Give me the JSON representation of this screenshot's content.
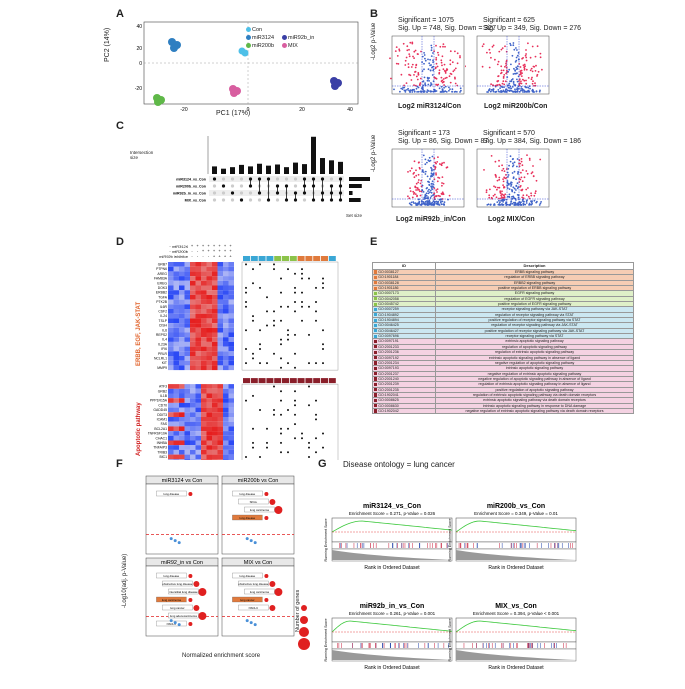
{
  "panel_labels": {
    "A": "A",
    "B": "B",
    "C": "C",
    "D": "D",
    "E": "E",
    "F": "F",
    "G": "G"
  },
  "pca": {
    "xlabel": "PC1 (17%)",
    "ylabel": "PC2 (14%)",
    "xticks": [
      "-20",
      "0",
      "20",
      "40"
    ],
    "yticks": [
      "40",
      "20",
      "0",
      "-20"
    ],
    "legend": [
      {
        "name": "Con",
        "color": "#4ec0e8"
      },
      {
        "name": "miR3124",
        "color": "#2f7fc1"
      },
      {
        "name": "miR92b_in",
        "color": "#3a3fa6"
      },
      {
        "name": "miR200b",
        "color": "#5fb848"
      },
      {
        "name": "MIX",
        "color": "#d85ea0"
      }
    ]
  },
  "volcano": [
    {
      "title": "Log2 miR3124/Con",
      "sig": "Significant = 1075",
      "updown": "Sig. Up = 748, Sig. Down = 327"
    },
    {
      "title": "Log2 miR200b/Con",
      "sig": "Significant = 625",
      "updown": "Sig. Up = 349, Sig. Down = 276"
    },
    {
      "title": "Log2 miR92b_in/Con",
      "sig": "Significant = 173",
      "updown": "Sig. Up = 86, Sig. Down = 87"
    },
    {
      "title": "Log2 MIX/Con",
      "sig": "Significant = 570",
      "updown": "Sig. Up = 384, Sig. Down = 186"
    }
  ],
  "volcano_ylabel": "-Log2 p-Value",
  "upset": {
    "ylabel": "Intersection size",
    "set_label": "Set size",
    "bars": [
      20,
      14,
      18,
      24,
      20,
      27,
      22,
      25,
      18,
      30,
      26,
      98,
      42,
      36,
      32
    ],
    "sets": [
      {
        "name": "miR3124_vs_Con",
        "size": "1075"
      },
      {
        "name": "miR200b_vs_Con",
        "size": "625"
      },
      {
        "name": "miR92b_in_vs_Con",
        "size": "173"
      },
      {
        "name": "MIX_vs_Con",
        "size": "570"
      }
    ]
  },
  "heatmap": {
    "row_labels": [
      "miR3124",
      "miR200b",
      "miR92b inhibitor"
    ],
    "side_label_1": "ERBB, EGF, JAK-STAT",
    "side_label_2": "Apoptotic pathway",
    "genes_top": [
      "GRB7",
      "PTPN6",
      "AREG",
      "FAM83A",
      "EREG",
      "DOK3",
      "ERBB2",
      "TGFA",
      "PTK2B",
      "IL6R",
      "CSF2",
      "IL24",
      "TSLP",
      "CISH",
      "IL6",
      "REPS2",
      "IL4",
      "IL23A",
      "IFI6",
      "PRLR",
      "NCLRL1",
      "KIT",
      "MMP9"
    ],
    "genes_bottom": [
      "ATF3",
      "GRB2",
      "IL1B",
      "PPP1R15A",
      "CD70",
      "GADD45",
      "DDIT3",
      "ICAM1",
      "FAS",
      "BCL2A1",
      "TNFRSF10A",
      "CHAC1",
      "INHBA",
      "TNFAIP3",
      "TRIB3",
      "BIC1",
      "HMOX1",
      "NGFR",
      "MMP9",
      "IL6R",
      "GRB83"
    ]
  },
  "go_table": {
    "col_id": "ID",
    "col_desc": "Description",
    "rows": [
      {
        "g": "ERBB",
        "c": "#e07a3c",
        "id": "GO:0038127",
        "d": "ERBB signaling pathway"
      },
      {
        "g": "ERBB",
        "c": "#e07a3c",
        "id": "GO:1901184",
        "d": "regulation of ERBB signaling pathway"
      },
      {
        "g": "ERBB",
        "c": "#e07a3c",
        "id": "GO:0038128",
        "d": "ERBB2 signaling pathway"
      },
      {
        "g": "ERBB",
        "c": "#e07a3c",
        "id": "GO:1901186",
        "d": "positive regulation of ERBB signaling pathway"
      },
      {
        "g": "EGFR",
        "c": "#8cc34a",
        "id": "GO:0007173",
        "d": "EGFR signaling pathway"
      },
      {
        "g": "EGFR",
        "c": "#8cc34a",
        "id": "GO:0042058",
        "d": "regulation of EGFR signaling pathway"
      },
      {
        "g": "EGFR",
        "c": "#8cc34a",
        "id": "GO:0045742",
        "d": "positive regulation of EGFR signaling pathway"
      },
      {
        "g": "JAK",
        "c": "#3aa7d5",
        "id": "GO:0007259",
        "d": "receptor signaling pathway via JAK-STAT"
      },
      {
        "g": "JAK",
        "c": "#3aa7d5",
        "id": "GO:1904892",
        "d": "regulation of receptor signaling pathway via STAT"
      },
      {
        "g": "JAK",
        "c": "#3aa7d5",
        "id": "GO:1904894",
        "d": "positive regulation of receptor signaling pathway via STAT"
      },
      {
        "g": "JAK",
        "c": "#3aa7d5",
        "id": "GO:0046425",
        "d": "regulation of receptor signaling pathway via JAK-STAT"
      },
      {
        "g": "JAK",
        "c": "#3aa7d5",
        "id": "GO:0046427",
        "d": "positive regulation of receptor signaling pathway via JAK-STAT"
      },
      {
        "g": "JAK",
        "c": "#3aa7d5",
        "id": "GO:0097696",
        "d": "receptor signaling pathway via STAT"
      },
      {
        "g": "APO",
        "c": "#8a1f2a",
        "id": "GO:0097191",
        "d": "extrinsic apoptotic signaling pathway"
      },
      {
        "g": "APO",
        "c": "#8a1f2a",
        "id": "GO:2001233",
        "d": "regulation of apoptotic signaling pathway"
      },
      {
        "g": "APO",
        "c": "#8a1f2a",
        "id": "GO:2001236",
        "d": "regulation of extrinsic apoptotic signaling pathway"
      },
      {
        "g": "APO",
        "c": "#8a1f2a",
        "id": "GO:0097192",
        "d": "extrinsic apoptotic signaling pathway in absence of ligand"
      },
      {
        "g": "APO",
        "c": "#8a1f2a",
        "id": "GO:2001234",
        "d": "negative regulation of apoptotic signaling pathway"
      },
      {
        "g": "APO",
        "c": "#8a1f2a",
        "id": "GO:0097193",
        "d": "intrinsic apoptotic signaling pathway"
      },
      {
        "g": "APO",
        "c": "#8a1f2a",
        "id": "GO:2001237",
        "d": "negative regulation of extrinsic apoptotic signaling pathway"
      },
      {
        "g": "APO",
        "c": "#8a1f2a",
        "id": "GO:2001240",
        "d": "negative regulation of apoptotic signaling pathway in absence of ligand"
      },
      {
        "g": "APO",
        "c": "#8a1f2a",
        "id": "GO:2001239",
        "d": "regulation of extrinsic apoptotic signaling pathway in absence of ligand"
      },
      {
        "g": "APO",
        "c": "#8a1f2a",
        "id": "GO:2001235",
        "d": "positive regulation of apoptotic signaling pathway"
      },
      {
        "g": "APO",
        "c": "#8a1f2a",
        "id": "GO:1902041",
        "d": "regulation of extrinsic apoptotic signaling pathway via death domain receptors"
      },
      {
        "g": "APO",
        "c": "#8a1f2a",
        "id": "GO:0008625",
        "d": "extrinsic apoptotic signaling pathway via death domain receptors"
      },
      {
        "g": "APO",
        "c": "#8a1f2a",
        "id": "GO:0008630",
        "d": "intrinsic apoptotic signaling pathway in response to DNA damage"
      },
      {
        "g": "APO",
        "c": "#8a1f2a",
        "id": "GO:1902042",
        "d": "negative regulation of extrinsic apoptotic signaling pathway via death domain receptors"
      }
    ]
  },
  "enrich": {
    "ylabel": "-Log10(adj. p-Value)",
    "xlabel": "Normalized enrichment score",
    "size_label": "Number of genes",
    "panels": [
      {
        "title": "miR3124 vs Con",
        "labels": [
          "lung disease"
        ]
      },
      {
        "title": "miR200b vs Con",
        "labels": [
          "lung disease",
          "SKGL",
          "lung carcinoma",
          "lung disease"
        ]
      },
      {
        "title": "miR92_in vs Con",
        "labels": [
          "lung disease",
          "obstructive lung disease",
          "interstitial lung disease",
          "lung carcinoma",
          "lung cancer",
          "lung adenocarcinoma",
          "NSCLC"
        ]
      },
      {
        "title": "MIX vs Con",
        "labels": [
          "lung disease",
          "obstructive lung disease",
          "lung carcinoma",
          "lung cancer",
          "NSCLC"
        ]
      }
    ],
    "size_legend": [
      "10",
      "20",
      "30",
      "40"
    ]
  },
  "gsea": {
    "header": "Disease ontology = lung cancer",
    "ylabel": "Running Enrichment Score",
    "xlabel": "Rank in Ordered Dataset",
    "panels": [
      {
        "title": "miR3124_vs_Con",
        "stat": "Enrichment Score = 0.271, p-Value = 0.026"
      },
      {
        "title": "miR200b_vs_Con",
        "stat": "Enrichment Score = 0.349, p-Value = 0.01"
      },
      {
        "title": "miR92b_in_vs_Con",
        "stat": "Enrichment Score = 0.261, p-Value = 0.001"
      },
      {
        "title": "MIX_vs_Con",
        "stat": "Enrichment Score = 0.394, p-Value < 0.001"
      }
    ]
  }
}
